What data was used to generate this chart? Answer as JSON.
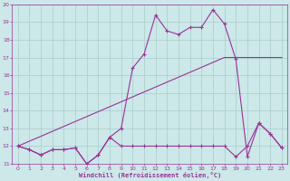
{
  "xlabel": "Windchill (Refroidissement éolien,°C)",
  "bg_color": "#cce8e8",
  "grid_color": "#aacccc",
  "line_color": "#993399",
  "xlim": [
    -0.5,
    23.5
  ],
  "ylim": [
    11,
    20
  ],
  "yticks": [
    11,
    12,
    13,
    14,
    15,
    16,
    17,
    18,
    19,
    20
  ],
  "xticks": [
    0,
    1,
    2,
    3,
    4,
    5,
    6,
    7,
    8,
    9,
    10,
    11,
    12,
    13,
    14,
    15,
    16,
    17,
    18,
    19,
    20,
    21,
    22,
    23
  ],
  "line1_x": [
    0,
    1,
    2,
    3,
    4,
    5,
    6,
    7,
    8,
    9,
    10,
    11,
    12,
    13,
    14,
    15,
    16,
    17,
    18,
    19,
    20,
    21,
    22,
    23
  ],
  "line1_y": [
    12.0,
    11.8,
    11.5,
    11.8,
    11.8,
    11.9,
    11.0,
    11.5,
    12.5,
    13.0,
    16.4,
    17.2,
    19.4,
    18.5,
    18.3,
    18.7,
    18.7,
    19.7,
    18.9,
    16.9,
    11.4,
    13.3,
    12.7,
    11.9
  ],
  "line2_x": [
    0,
    1,
    2,
    3,
    4,
    5,
    6,
    7,
    8,
    9,
    10,
    11,
    12,
    13,
    14,
    15,
    16,
    17,
    18,
    19,
    20,
    21,
    22,
    23
  ],
  "line2_y": [
    12.0,
    11.8,
    11.5,
    11.8,
    11.8,
    11.9,
    11.0,
    11.5,
    12.5,
    12.0,
    12.0,
    12.0,
    12.0,
    12.0,
    12.0,
    12.0,
    12.0,
    12.0,
    12.0,
    11.4,
    12.0,
    13.3,
    12.7,
    11.9
  ],
  "line3_x": [
    0,
    9,
    18,
    23
  ],
  "line3_y": [
    12.0,
    14.5,
    17.0,
    17.0
  ]
}
